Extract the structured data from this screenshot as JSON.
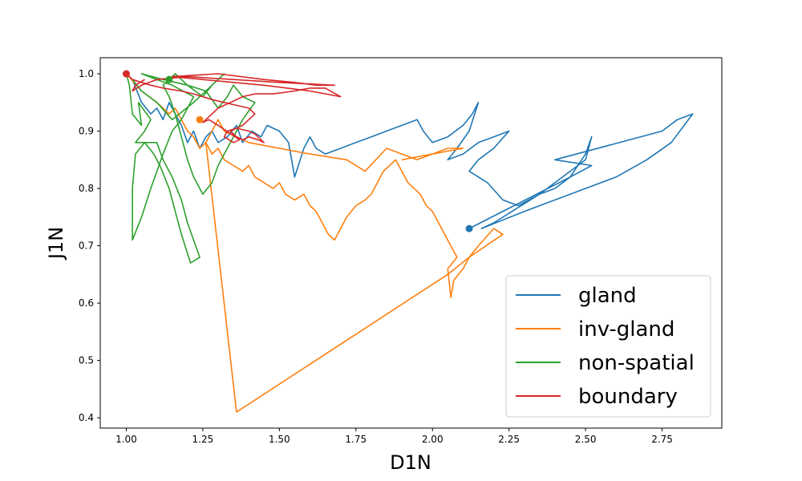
{
  "chart_data": {
    "type": "line",
    "xlabel": "D1N",
    "ylabel": "J1N",
    "xlim": [
      0.915,
      2.945
    ],
    "ylim": [
      0.382,
      1.028
    ],
    "xticks": [
      "1.00",
      "1.25",
      "1.50",
      "1.75",
      "2.00",
      "2.25",
      "2.50",
      "2.75"
    ],
    "yticks": [
      "0.4",
      "0.5",
      "0.6",
      "0.7",
      "0.8",
      "0.9",
      "1.0"
    ],
    "grid": false,
    "legend_position": "bottom-right",
    "series": [
      {
        "name": "gland",
        "color": "#1f77b4",
        "points": [
          [
            1.0,
            1.0
          ],
          [
            1.02,
            0.99
          ],
          [
            1.05,
            0.95
          ],
          [
            1.08,
            0.93
          ],
          [
            1.1,
            0.94
          ],
          [
            1.12,
            0.92
          ],
          [
            1.14,
            0.95
          ],
          [
            1.16,
            0.93
          ],
          [
            1.18,
            0.91
          ],
          [
            1.2,
            0.88
          ],
          [
            1.22,
            0.9
          ],
          [
            1.24,
            0.87
          ],
          [
            1.26,
            0.89
          ],
          [
            1.28,
            0.9
          ],
          [
            1.3,
            0.88
          ],
          [
            1.33,
            0.89
          ],
          [
            1.36,
            0.91
          ],
          [
            1.38,
            0.88
          ],
          [
            1.41,
            0.9
          ],
          [
            1.44,
            0.89
          ],
          [
            1.46,
            0.91
          ],
          [
            1.5,
            0.9
          ],
          [
            1.53,
            0.88
          ],
          [
            1.55,
            0.82
          ],
          [
            1.58,
            0.87
          ],
          [
            1.6,
            0.89
          ],
          [
            1.62,
            0.87
          ],
          [
            1.65,
            0.86
          ],
          [
            1.7,
            0.87
          ],
          [
            1.75,
            0.88
          ],
          [
            1.8,
            0.89
          ],
          [
            1.85,
            0.9
          ],
          [
            1.9,
            0.91
          ],
          [
            1.95,
            0.92
          ],
          [
            1.97,
            0.9
          ],
          [
            2.0,
            0.88
          ],
          [
            2.05,
            0.89
          ],
          [
            2.1,
            0.91
          ],
          [
            2.13,
            0.93
          ],
          [
            2.15,
            0.95
          ],
          [
            2.12,
            0.9
          ],
          [
            2.08,
            0.87
          ],
          [
            2.05,
            0.85
          ],
          [
            2.1,
            0.86
          ],
          [
            2.15,
            0.88
          ],
          [
            2.2,
            0.89
          ],
          [
            2.25,
            0.9
          ],
          [
            2.2,
            0.87
          ],
          [
            2.15,
            0.85
          ],
          [
            2.12,
            0.83
          ],
          [
            2.18,
            0.81
          ],
          [
            2.23,
            0.78
          ],
          [
            2.28,
            0.77
          ],
          [
            2.35,
            0.79
          ],
          [
            2.4,
            0.81
          ],
          [
            2.45,
            0.83
          ],
          [
            2.5,
            0.85
          ],
          [
            2.52,
            0.89
          ],
          [
            2.5,
            0.86
          ],
          [
            2.45,
            0.82
          ],
          [
            2.4,
            0.8
          ],
          [
            2.35,
            0.79
          ],
          [
            2.2,
            0.74
          ],
          [
            2.16,
            0.73
          ],
          [
            2.3,
            0.76
          ],
          [
            2.45,
            0.79
          ],
          [
            2.6,
            0.82
          ],
          [
            2.7,
            0.85
          ],
          [
            2.78,
            0.88
          ],
          [
            2.85,
            0.93
          ],
          [
            2.8,
            0.92
          ],
          [
            2.75,
            0.9
          ],
          [
            2.4,
            0.85
          ],
          [
            2.52,
            0.84
          ],
          [
            2.45,
            0.82
          ],
          [
            2.12,
            0.73
          ]
        ]
      },
      {
        "name": "inv-gland",
        "color": "#ff7f0e",
        "points": [
          [
            1.0,
            1.0
          ],
          [
            1.05,
            0.97
          ],
          [
            1.1,
            0.95
          ],
          [
            1.14,
            0.93
          ],
          [
            1.16,
            0.94
          ],
          [
            1.18,
            0.92
          ],
          [
            1.2,
            0.9
          ],
          [
            1.22,
            0.89
          ],
          [
            1.24,
            0.87
          ],
          [
            1.26,
            0.88
          ],
          [
            1.28,
            0.86
          ],
          [
            1.3,
            0.87
          ],
          [
            1.32,
            0.85
          ],
          [
            1.35,
            0.84
          ],
          [
            1.38,
            0.83
          ],
          [
            1.4,
            0.84
          ],
          [
            1.42,
            0.82
          ],
          [
            1.45,
            0.81
          ],
          [
            1.48,
            0.8
          ],
          [
            1.5,
            0.81
          ],
          [
            1.52,
            0.79
          ],
          [
            1.55,
            0.78
          ],
          [
            1.58,
            0.79
          ],
          [
            1.6,
            0.77
          ],
          [
            1.62,
            0.76
          ],
          [
            1.64,
            0.74
          ],
          [
            1.66,
            0.72
          ],
          [
            1.68,
            0.71
          ],
          [
            1.7,
            0.73
          ],
          [
            1.72,
            0.75
          ],
          [
            1.75,
            0.77
          ],
          [
            1.78,
            0.78
          ],
          [
            1.8,
            0.79
          ],
          [
            1.82,
            0.81
          ],
          [
            1.84,
            0.83
          ],
          [
            1.86,
            0.84
          ],
          [
            1.88,
            0.85
          ],
          [
            1.9,
            0.83
          ],
          [
            1.92,
            0.81
          ],
          [
            1.94,
            0.8
          ],
          [
            1.96,
            0.79
          ],
          [
            1.98,
            0.77
          ],
          [
            2.0,
            0.76
          ],
          [
            2.02,
            0.74
          ],
          [
            2.04,
            0.72
          ],
          [
            2.06,
            0.7
          ],
          [
            2.08,
            0.68
          ],
          [
            2.05,
            0.66
          ],
          [
            2.06,
            0.61
          ],
          [
            2.07,
            0.64
          ],
          [
            2.1,
            0.66
          ],
          [
            2.12,
            0.68
          ],
          [
            2.15,
            0.7
          ],
          [
            2.2,
            0.73
          ],
          [
            2.23,
            0.72
          ],
          [
            2.12,
            0.68
          ],
          [
            2.05,
            0.65
          ],
          [
            1.36,
            0.41
          ],
          [
            1.26,
            0.88
          ],
          [
            1.28,
            0.9
          ],
          [
            1.3,
            0.92
          ],
          [
            1.32,
            0.9
          ],
          [
            1.4,
            0.88
          ],
          [
            1.6,
            0.86
          ],
          [
            1.72,
            0.85
          ],
          [
            1.78,
            0.83
          ],
          [
            1.85,
            0.87
          ],
          [
            1.9,
            0.86
          ],
          [
            1.95,
            0.85
          ],
          [
            2.0,
            0.86
          ],
          [
            2.05,
            0.87
          ],
          [
            2.1,
            0.87
          ],
          [
            1.9,
            0.85
          ]
        ]
      },
      {
        "name": "non-spatial",
        "color": "#2ca02c",
        "points": [
          [
            1.0,
            1.0
          ],
          [
            1.01,
            0.98
          ],
          [
            1.02,
            0.93
          ],
          [
            1.05,
            0.91
          ],
          [
            1.04,
            0.95
          ],
          [
            1.08,
            0.92
          ],
          [
            1.06,
            0.9
          ],
          [
            1.03,
            0.88
          ],
          [
            1.1,
            0.88
          ],
          [
            1.12,
            0.85
          ],
          [
            1.15,
            0.82
          ],
          [
            1.18,
            0.78
          ],
          [
            1.2,
            0.74
          ],
          [
            1.22,
            0.71
          ],
          [
            1.24,
            0.68
          ],
          [
            1.21,
            0.67
          ],
          [
            1.18,
            0.72
          ],
          [
            1.16,
            0.76
          ],
          [
            1.14,
            0.8
          ],
          [
            1.11,
            0.84
          ],
          [
            1.09,
            0.86
          ],
          [
            1.06,
            0.88
          ],
          [
            1.03,
            0.86
          ],
          [
            1.02,
            0.8
          ],
          [
            1.02,
            0.71
          ],
          [
            1.05,
            0.75
          ],
          [
            1.08,
            0.8
          ],
          [
            1.12,
            0.86
          ],
          [
            1.15,
            0.9
          ],
          [
            1.18,
            0.92
          ],
          [
            1.2,
            0.94
          ],
          [
            1.22,
            0.96
          ],
          [
            1.15,
            0.98
          ],
          [
            1.1,
            0.99
          ],
          [
            1.05,
            1.0
          ],
          [
            1.12,
            0.99
          ],
          [
            1.2,
            0.98
          ],
          [
            1.26,
            0.97
          ],
          [
            1.3,
            0.94
          ],
          [
            1.33,
            0.96
          ],
          [
            1.35,
            0.98
          ],
          [
            1.38,
            0.96
          ],
          [
            1.42,
            0.95
          ],
          [
            1.38,
            0.92
          ],
          [
            1.34,
            0.88
          ],
          [
            1.32,
            0.86
          ],
          [
            1.3,
            0.84
          ],
          [
            1.28,
            0.81
          ],
          [
            1.25,
            0.79
          ],
          [
            1.22,
            0.82
          ],
          [
            1.2,
            0.85
          ],
          [
            1.18,
            0.89
          ],
          [
            1.16,
            0.93
          ],
          [
            1.14,
            0.96
          ],
          [
            1.12,
            0.98
          ],
          [
            1.14,
            0.99
          ],
          [
            1.16,
            1.0
          ],
          [
            1.2,
            0.98
          ],
          [
            1.25,
            0.96
          ],
          [
            1.28,
            0.98
          ],
          [
            1.32,
            1.0
          ],
          [
            1.22,
            0.95
          ],
          [
            1.15,
            0.92
          ],
          [
            1.1,
            0.95
          ],
          [
            1.05,
            0.97
          ],
          [
            1.02,
            0.99
          ]
        ]
      },
      {
        "name": "boundary",
        "color": "#d62728",
        "points": [
          [
            1.0,
            1.0
          ],
          [
            1.02,
            0.99
          ],
          [
            1.05,
            0.985
          ],
          [
            1.08,
            0.98
          ],
          [
            1.12,
            0.975
          ],
          [
            1.18,
            0.97
          ],
          [
            1.22,
            0.965
          ],
          [
            1.28,
            0.955
          ],
          [
            1.32,
            0.95
          ],
          [
            1.36,
            0.945
          ],
          [
            1.4,
            0.94
          ],
          [
            1.42,
            0.93
          ],
          [
            1.38,
            0.91
          ],
          [
            1.34,
            0.9
          ],
          [
            1.36,
            0.89
          ],
          [
            1.38,
            0.885
          ],
          [
            1.4,
            0.89
          ],
          [
            1.43,
            0.885
          ],
          [
            1.45,
            0.88
          ],
          [
            1.42,
            0.895
          ],
          [
            1.4,
            0.9
          ],
          [
            1.36,
            0.905
          ],
          [
            1.33,
            0.9
          ],
          [
            1.32,
            0.89
          ],
          [
            1.35,
            0.88
          ],
          [
            1.37,
            0.885
          ],
          [
            1.3,
            0.91
          ],
          [
            1.27,
            0.92
          ],
          [
            1.25,
            0.915
          ],
          [
            1.26,
            0.92
          ],
          [
            1.28,
            0.93
          ],
          [
            1.3,
            0.94
          ],
          [
            1.34,
            0.95
          ],
          [
            1.38,
            0.96
          ],
          [
            1.42,
            0.965
          ],
          [
            1.48,
            0.965
          ],
          [
            1.55,
            0.97
          ],
          [
            1.6,
            0.975
          ],
          [
            1.65,
            0.975
          ],
          [
            1.7,
            0.96
          ],
          [
            1.6,
            0.97
          ],
          [
            1.45,
            0.98
          ],
          [
            1.35,
            0.985
          ],
          [
            1.25,
            0.99
          ],
          [
            1.15,
            0.995
          ],
          [
            1.3,
            1.0
          ],
          [
            1.45,
            0.99
          ],
          [
            1.55,
            0.985
          ],
          [
            1.62,
            0.98
          ],
          [
            1.68,
            0.98
          ],
          [
            1.5,
            0.985
          ],
          [
            1.35,
            0.99
          ],
          [
            1.2,
            0.995
          ],
          [
            1.1,
            0.99
          ],
          [
            1.05,
            0.98
          ],
          [
            1.02,
            0.97
          ],
          [
            1.03,
            0.98
          ],
          [
            1.06,
            0.99
          ]
        ]
      }
    ],
    "markers": [
      {
        "series": "gland",
        "x": 2.12,
        "y": 0.73,
        "color": "#1f77b4"
      },
      {
        "series": "inv-gland",
        "x": 1.24,
        "y": 0.92,
        "color": "#ff7f0e"
      },
      {
        "series": "non-spatial",
        "x": 1.14,
        "y": 0.99,
        "color": "#2ca02c"
      },
      {
        "series": "boundary",
        "x": 1.0,
        "y": 1.0,
        "color": "#d62728"
      }
    ]
  }
}
